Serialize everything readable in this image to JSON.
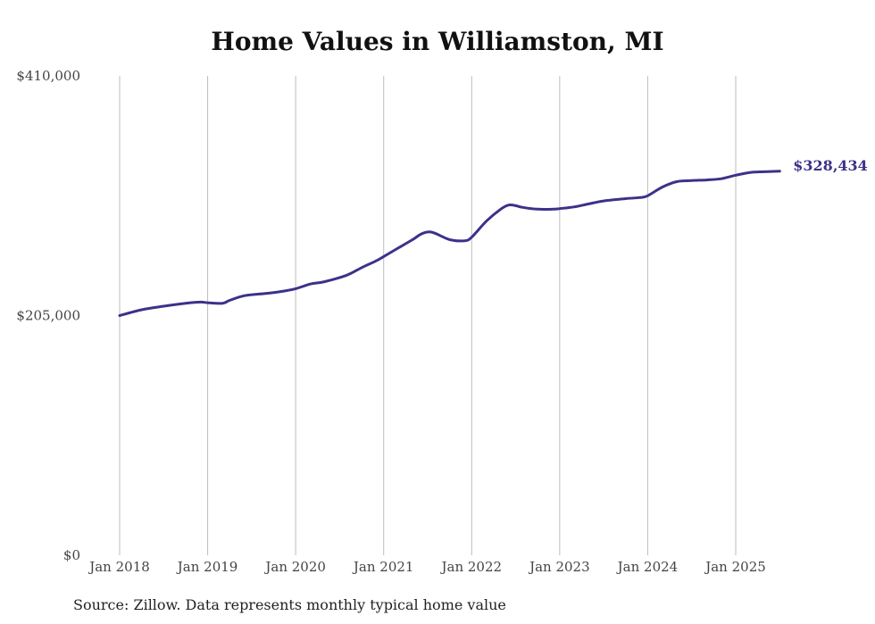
{
  "chart_data": {
    "type": "line",
    "title": "Home Values in Williamston, MI",
    "xlabel": "",
    "ylabel": "",
    "ylim": [
      0,
      410000
    ],
    "y_ticks": [
      {
        "value": 0,
        "label": "$0"
      },
      {
        "value": 205000,
        "label": "$205,000"
      },
      {
        "value": 410000,
        "label": "$410,000"
      }
    ],
    "x_ticks": [
      {
        "value": 2018.0,
        "label": "Jan 2018"
      },
      {
        "value": 2019.0,
        "label": "Jan 2019"
      },
      {
        "value": 2020.0,
        "label": "Jan 2020"
      },
      {
        "value": 2021.0,
        "label": "Jan 2021"
      },
      {
        "value": 2022.0,
        "label": "Jan 2022"
      },
      {
        "value": 2023.0,
        "label": "Jan 2023"
      },
      {
        "value": 2024.0,
        "label": "Jan 2024"
      },
      {
        "value": 2025.0,
        "label": "Jan 2025"
      }
    ],
    "xlim": [
      2018.0,
      2025.5
    ],
    "grid": "vertical",
    "line_color": "#3b3289",
    "series": [
      {
        "x": [
          2018.0,
          2018.25,
          2018.5,
          2018.75,
          2018.92,
          2019.0,
          2019.17,
          2019.25,
          2019.42,
          2019.67,
          2019.83,
          2020.0,
          2020.17,
          2020.33,
          2020.58,
          2020.75,
          2020.92,
          2021.0,
          2021.17,
          2021.33,
          2021.42,
          2021.5,
          2021.58,
          2021.75,
          2021.92,
          2022.0,
          2022.17,
          2022.33,
          2022.42,
          2022.5,
          2022.58,
          2022.75,
          2022.92,
          2023.0,
          2023.17,
          2023.33,
          2023.5,
          2023.75,
          2023.92,
          2024.0,
          2024.17,
          2024.33,
          2024.5,
          2024.67,
          2024.83,
          2025.0,
          2025.17,
          2025.33,
          2025.5
        ],
        "y": [
          205000,
          210000,
          213000,
          215500,
          216500,
          216000,
          215500,
          218000,
          222000,
          224000,
          225500,
          228000,
          232000,
          234000,
          239500,
          246000,
          252000,
          255500,
          263000,
          270000,
          274500,
          276500,
          275500,
          270000,
          269000,
          272000,
          286000,
          296000,
          299500,
          299000,
          297500,
          296000,
          296000,
          296500,
          298000,
          300500,
          303000,
          305000,
          306000,
          307500,
          315000,
          319500,
          320500,
          321000,
          322000,
          325000,
          327500,
          328000,
          328434
        ],
        "end_label": "$328,434"
      }
    ]
  },
  "footer": {
    "source": "Source: Zillow. Data represents monthly typical home value"
  }
}
